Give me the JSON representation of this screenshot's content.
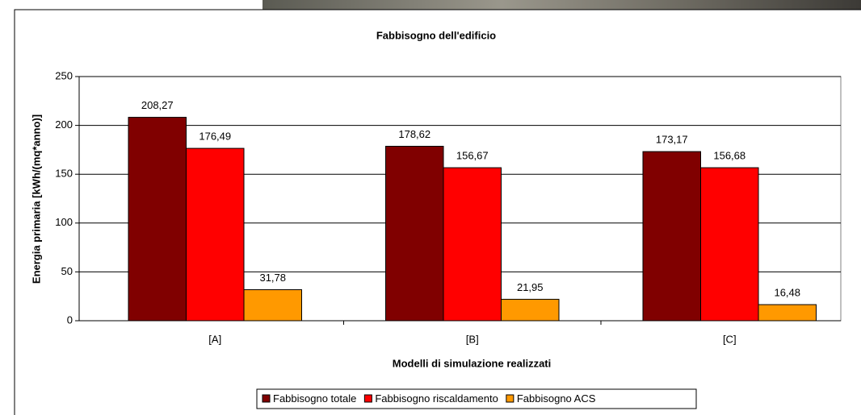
{
  "chart_data": {
    "type": "bar",
    "title": "Fabbisogno dell'edificio",
    "y_label": "Energia primaria [kWh/(mq*anno)]",
    "x_label": "Modelli di simulazione realizzati",
    "categories": [
      "[A]",
      "[B]",
      "[C]"
    ],
    "series": [
      {
        "name": "Fabbisogno totale",
        "color": "#800000",
        "values": [
          208.27,
          178.62,
          173.17
        ],
        "value_labels": [
          "208,27",
          "178,62",
          "173,17"
        ]
      },
      {
        "name": "Fabbisogno riscaldamento",
        "color": "#ff0000",
        "values": [
          176.49,
          156.67,
          156.68
        ],
        "value_labels": [
          "176,49",
          "156,67",
          "156,68"
        ]
      },
      {
        "name": "Fabbisogno ACS",
        "color": "#ff9900",
        "values": [
          31.78,
          21.95,
          16.48
        ],
        "value_labels": [
          "31,78",
          "21,95",
          "16,48"
        ]
      }
    ],
    "ylim": [
      0,
      250
    ],
    "yticks": [
      0,
      50,
      100,
      150,
      200,
      250
    ],
    "grid": true,
    "legend": "bottom"
  }
}
